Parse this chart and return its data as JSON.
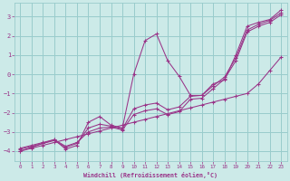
{
  "xlabel": "Windchill (Refroidissement éolien,°C)",
  "background_color": "#cceae8",
  "grid_color": "#99cccc",
  "line_color": "#993388",
  "xlim": [
    -0.5,
    23.5
  ],
  "ylim": [
    -4.5,
    3.7
  ],
  "yticks": [
    -4,
    -3,
    -2,
    -1,
    0,
    1,
    2,
    3
  ],
  "xticks": [
    0,
    1,
    2,
    3,
    4,
    5,
    6,
    7,
    8,
    9,
    10,
    11,
    12,
    13,
    14,
    15,
    16,
    17,
    18,
    19,
    20,
    21,
    22,
    23
  ],
  "lines": [
    {
      "x": [
        0,
        1,
        2,
        3,
        4,
        5,
        6,
        7,
        8,
        9,
        10,
        11,
        12,
        13,
        14,
        15,
        16,
        17,
        18,
        19,
        20,
        21,
        22,
        23
      ],
      "y": [
        -4.0,
        -3.8,
        -3.6,
        -3.4,
        -3.9,
        -3.7,
        -2.5,
        -2.2,
        -2.65,
        -2.8,
        0.0,
        1.75,
        2.1,
        0.7,
        -0.1,
        -1.1,
        -1.1,
        -0.5,
        -0.3,
        1.0,
        2.5,
        2.7,
        2.85,
        3.35
      ]
    },
    {
      "x": [
        0,
        1,
        2,
        3,
        4,
        5,
        6,
        7,
        8,
        9,
        10,
        11,
        12,
        13,
        14,
        15,
        16,
        17,
        18,
        19,
        20,
        21,
        22,
        23
      ],
      "y": [
        -4.0,
        -3.85,
        -3.7,
        -3.55,
        -3.4,
        -3.25,
        -3.1,
        -2.95,
        -2.8,
        -2.65,
        -2.5,
        -2.35,
        -2.2,
        -2.05,
        -1.9,
        -1.75,
        -1.6,
        -1.45,
        -1.3,
        -1.15,
        -1.0,
        -0.5,
        0.2,
        0.9
      ]
    },
    {
      "x": [
        0,
        1,
        2,
        3,
        4,
        5,
        6,
        7,
        8,
        9,
        10,
        11,
        12,
        13,
        14,
        15,
        16,
        17,
        18,
        19,
        20,
        21,
        22,
        23
      ],
      "y": [
        -3.85,
        -3.7,
        -3.55,
        -3.4,
        -3.75,
        -3.55,
        -3.0,
        -2.8,
        -2.75,
        -2.9,
        -2.1,
        -1.9,
        -1.8,
        -2.1,
        -1.95,
        -1.3,
        -1.25,
        -0.75,
        -0.25,
        0.7,
        2.2,
        2.5,
        2.7,
        3.1
      ]
    },
    {
      "x": [
        0,
        1,
        2,
        3,
        4,
        5,
        6,
        7,
        8,
        9,
        10,
        11,
        12,
        13,
        14,
        15,
        16,
        17,
        18,
        19,
        20,
        21,
        22,
        23
      ],
      "y": [
        -3.9,
        -3.75,
        -3.6,
        -3.45,
        -3.8,
        -3.6,
        -2.8,
        -2.6,
        -2.7,
        -2.85,
        -1.8,
        -1.6,
        -1.5,
        -1.85,
        -1.7,
        -1.15,
        -1.1,
        -0.6,
        -0.15,
        0.85,
        2.3,
        2.6,
        2.8,
        3.2
      ]
    }
  ]
}
